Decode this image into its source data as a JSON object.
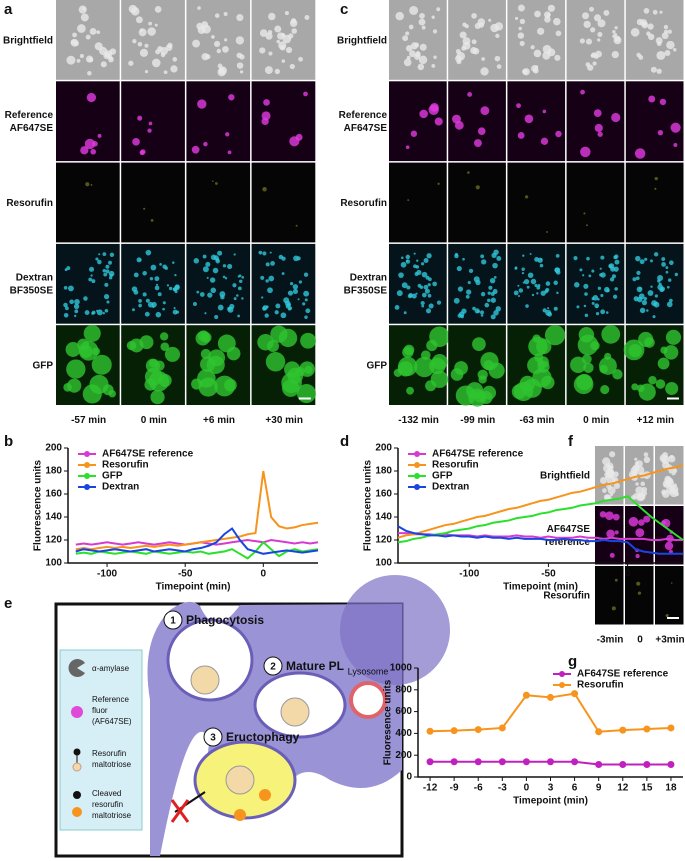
{
  "panel_labels": [
    "a",
    "b",
    "c",
    "d",
    "e",
    "f",
    "g"
  ],
  "panel_a": {
    "rows": [
      [
        "Brightfield"
      ],
      [
        "Reference",
        "AF647SE"
      ],
      [
        "Resorufin"
      ],
      [
        "Dextran",
        "BF350SE"
      ],
      [
        "GFP"
      ]
    ],
    "times": [
      "-57 min",
      "0 min",
      "+6 min",
      "+30 min"
    ]
  },
  "panel_c": {
    "rows": [
      [
        "Brightfield"
      ],
      [
        "Reference",
        "AF647SE"
      ],
      [
        "Resorufin"
      ],
      [
        "Dextran",
        "BF350SE"
      ],
      [
        "GFP"
      ]
    ],
    "times": [
      "-132 min",
      "-99 min",
      "-63 min",
      "0 min",
      "+12 min"
    ]
  },
  "panel_f": {
    "rows": [
      [
        "Brightfield"
      ],
      [
        "AF647SE",
        "reference"
      ],
      [
        "Resorufin"
      ]
    ],
    "times": [
      "-3min",
      "0",
      "+3min"
    ]
  },
  "diagram": {
    "steps": [
      {
        "number": "1",
        "label": "Phagocytosis"
      },
      {
        "number": "2",
        "label": "Mature PL"
      },
      {
        "number": "3",
        "label": "Eructophagy"
      }
    ],
    "lysosome": "Lysosome",
    "legend": [
      [
        "α-amylase"
      ],
      [
        "Reference",
        "fluor",
        "(AF647SE)"
      ],
      [
        "Resorufin",
        "maltotriose"
      ],
      [
        "Cleaved",
        "resorufin",
        "maltotriose"
      ]
    ]
  },
  "chart_data": [
    {
      "type": "line",
      "ylabel": "Fluorescence units",
      "xlabel": "Timepoint (min)",
      "xlim": [
        -125,
        35
      ],
      "xticks": [
        -100,
        -50,
        0
      ],
      "ylim": [
        100,
        200
      ],
      "yticks": [
        100,
        120,
        140,
        160,
        180,
        200
      ],
      "legend": "upper left",
      "x": [
        -120,
        -115,
        -110,
        -105,
        -100,
        -95,
        -90,
        -85,
        -80,
        -75,
        -70,
        -65,
        -60,
        -55,
        -50,
        -45,
        -40,
        -35,
        -30,
        -25,
        -20,
        -15,
        -10,
        -5,
        0,
        5,
        10,
        15,
        20,
        25,
        30,
        35
      ],
      "series": [
        {
          "name": "AF647SE reference",
          "color": "#d63bd1",
          "values": [
            116,
            117,
            116,
            117,
            118,
            117,
            116,
            117,
            118,
            117,
            116,
            117,
            118,
            117,
            116,
            117,
            118,
            117,
            116,
            117,
            118,
            119,
            120,
            119,
            118,
            120,
            119,
            118,
            117,
            118,
            117,
            118
          ]
        },
        {
          "name": "Resorufin",
          "color": "#f7941d",
          "values": [
            112,
            113,
            112,
            113,
            114,
            113,
            114,
            113,
            114,
            115,
            114,
            115,
            116,
            115,
            116,
            117,
            118,
            119,
            120,
            121,
            122,
            123,
            125,
            126,
            180,
            140,
            132,
            130,
            131,
            133,
            134,
            135
          ]
        },
        {
          "name": "GFP",
          "color": "#2be02b",
          "values": [
            108,
            109,
            108,
            110,
            109,
            108,
            109,
            110,
            109,
            108,
            110,
            109,
            108,
            109,
            110,
            109,
            110,
            108,
            109,
            110,
            112,
            108,
            104,
            110,
            118,
            112,
            106,
            110,
            112,
            110,
            111,
            112
          ]
        },
        {
          "name": "Dextran",
          "color": "#1a46e0",
          "values": [
            110,
            112,
            111,
            110,
            111,
            112,
            111,
            110,
            111,
            112,
            110,
            111,
            112,
            111,
            110,
            112,
            113,
            115,
            118,
            125,
            130,
            120,
            112,
            110,
            108,
            109,
            110,
            111,
            110,
            109,
            110,
            111
          ]
        }
      ]
    },
    {
      "type": "line",
      "ylabel": "Fluorescence units",
      "xlabel": "Timepoint (min)",
      "xlim": [
        -145,
        35
      ],
      "xticks": [
        -100,
        -50,
        0
      ],
      "ylim": [
        100,
        200
      ],
      "yticks": [
        100,
        120,
        140,
        160,
        180,
        200
      ],
      "legend": "upper left",
      "x": [
        -145,
        -140,
        -135,
        -130,
        -125,
        -120,
        -115,
        -110,
        -105,
        -100,
        -95,
        -90,
        -85,
        -80,
        -75,
        -70,
        -65,
        -60,
        -55,
        -50,
        -45,
        -40,
        -35,
        -30,
        -25,
        -20,
        -15,
        -10,
        -5,
        0,
        5,
        10,
        15,
        20,
        25,
        30,
        35
      ],
      "series": [
        {
          "name": "AF647SE reference",
          "color": "#d63bd1",
          "values": [
            126,
            126,
            125,
            125,
            125,
            124,
            125,
            124,
            124,
            124,
            123,
            124,
            123,
            123,
            123,
            124,
            123,
            123,
            122,
            123,
            122,
            122,
            122,
            123,
            122,
            122,
            121,
            122,
            121,
            121,
            121,
            121,
            120,
            120,
            121,
            120,
            120
          ]
        },
        {
          "name": "Resorufin",
          "color": "#f7941d",
          "values": [
            122,
            124,
            125,
            127,
            129,
            131,
            133,
            134,
            136,
            138,
            140,
            141,
            143,
            145,
            147,
            148,
            150,
            152,
            154,
            155,
            157,
            159,
            161,
            162,
            164,
            166,
            168,
            169,
            171,
            173,
            175,
            176,
            178,
            180,
            182,
            183,
            185
          ]
        },
        {
          "name": "GFP",
          "color": "#2be02b",
          "values": [
            118,
            119,
            121,
            122,
            124,
            125,
            126,
            128,
            129,
            130,
            132,
            133,
            135,
            136,
            137,
            139,
            140,
            141,
            143,
            144,
            146,
            147,
            148,
            150,
            151,
            152,
            154,
            155,
            156,
            158,
            152,
            146,
            140,
            135,
            130,
            125,
            120
          ]
        },
        {
          "name": "Dextran",
          "color": "#1a46e0",
          "values": [
            132,
            128,
            126,
            125,
            124,
            124,
            123,
            124,
            123,
            123,
            122,
            123,
            122,
            122,
            121,
            122,
            121,
            121,
            121,
            120,
            120,
            121,
            120,
            120,
            119,
            119,
            120,
            119,
            119,
            118,
            112,
            110,
            109,
            108,
            108,
            108,
            108
          ]
        }
      ]
    },
    {
      "type": "line",
      "ylabel": "Fluoresence units",
      "xlabel": "Timepoint (min)",
      "markers": true,
      "xlim": [
        -13.5,
        19.5
      ],
      "xticks": [
        -12,
        -9,
        -6,
        -3,
        0,
        3,
        6,
        9,
        12,
        15,
        18
      ],
      "ylim": [
        0,
        1000
      ],
      "yticks": [
        0,
        200,
        400,
        600,
        800,
        1000
      ],
      "legend": "upper right",
      "x": [
        -12,
        -9,
        -6,
        -3,
        0,
        3,
        6,
        9,
        12,
        15,
        18
      ],
      "series": [
        {
          "name": "AF647SE reference",
          "color": "#c21fbf",
          "values": [
            140,
            140,
            140,
            140,
            140,
            140,
            140,
            115,
            115,
            115,
            115
          ]
        },
        {
          "name": "Resorufin",
          "color": "#f7941d",
          "values": [
            420,
            425,
            435,
            450,
            750,
            730,
            765,
            415,
            430,
            440,
            450
          ]
        }
      ]
    }
  ]
}
